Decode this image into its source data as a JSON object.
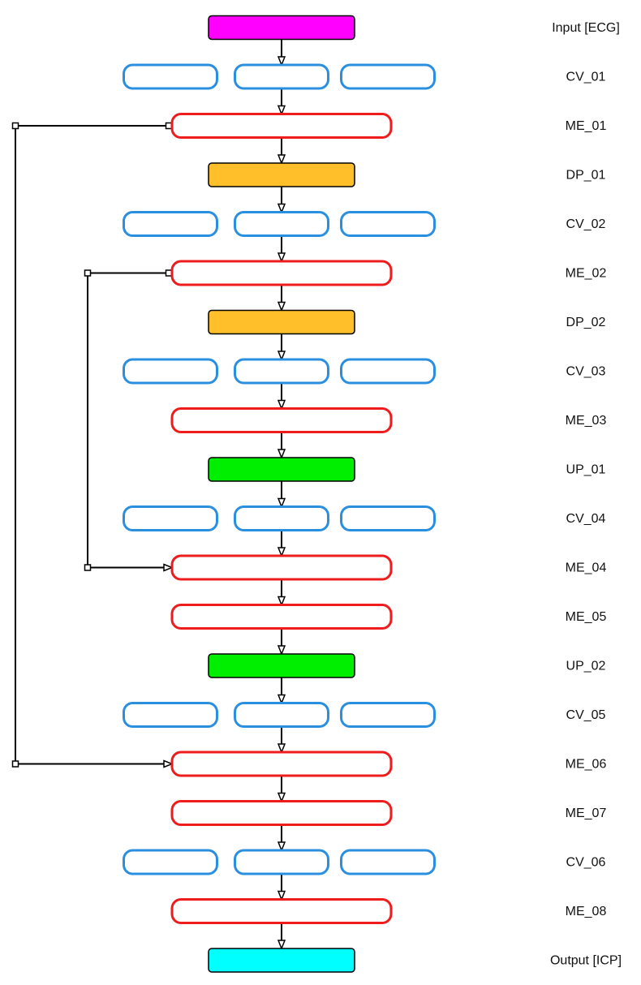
{
  "diagram": {
    "colors": {
      "input": "#ff00ff",
      "conv": "#2b8fe0",
      "module": "#ee1c1c",
      "downsample": "#ffbf2a",
      "upsample": "#00ee00",
      "output": "#00ffff",
      "line": "#000000"
    },
    "layers": [
      {
        "id": "input",
        "label": "Input [ECG]",
        "kind": "input"
      },
      {
        "id": "cv01",
        "label": "CV_01",
        "kind": "conv"
      },
      {
        "id": "me01",
        "label": "ME_01",
        "kind": "module"
      },
      {
        "id": "dp01",
        "label": "DP_01",
        "kind": "downsample"
      },
      {
        "id": "cv02",
        "label": "CV_02",
        "kind": "conv"
      },
      {
        "id": "me02",
        "label": "ME_02",
        "kind": "module"
      },
      {
        "id": "dp02",
        "label": "DP_02",
        "kind": "downsample"
      },
      {
        "id": "cv03",
        "label": "CV_03",
        "kind": "conv"
      },
      {
        "id": "me03",
        "label": "ME_03",
        "kind": "module"
      },
      {
        "id": "up01",
        "label": "UP_01",
        "kind": "upsample"
      },
      {
        "id": "cv04",
        "label": "CV_04",
        "kind": "conv"
      },
      {
        "id": "me04",
        "label": "ME_04",
        "kind": "module"
      },
      {
        "id": "me05",
        "label": "ME_05",
        "kind": "module"
      },
      {
        "id": "up02",
        "label": "UP_02",
        "kind": "upsample"
      },
      {
        "id": "cv05",
        "label": "CV_05",
        "kind": "conv"
      },
      {
        "id": "me06",
        "label": "ME_06",
        "kind": "module"
      },
      {
        "id": "me07",
        "label": "ME_07",
        "kind": "module"
      },
      {
        "id": "cv06",
        "label": "CV_06",
        "kind": "conv"
      },
      {
        "id": "me08",
        "label": "ME_08",
        "kind": "module"
      },
      {
        "id": "output",
        "label": "Output [ICP]",
        "kind": "output"
      }
    ],
    "skip_connections": [
      {
        "from": "ME_01",
        "to": "ME_06"
      },
      {
        "from": "ME_02",
        "to": "ME_04"
      }
    ]
  }
}
